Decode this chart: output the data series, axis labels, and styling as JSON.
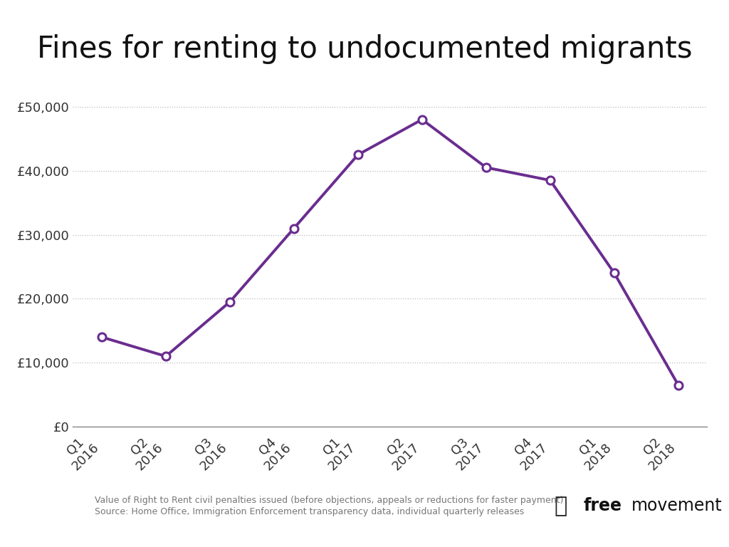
{
  "title": "Fines for renting to undocumented migrants",
  "x_labels": [
    "Q1\n2016",
    "Q2\n2016",
    "Q3\n2016",
    "Q4\n2016",
    "Q1\n2017",
    "Q2\n2017",
    "Q3\n2017",
    "Q4\n2017",
    "Q1\n2018",
    "Q2\n2018"
  ],
  "y_values": [
    14000,
    11000,
    19500,
    31000,
    42500,
    48000,
    40500,
    38500,
    24000,
    6500
  ],
  "line_color": "#6a2d8f",
  "marker_color": "#6a2d8f",
  "marker_face": "#ffffff",
  "ylim": [
    0,
    53000
  ],
  "yticks": [
    0,
    10000,
    20000,
    30000,
    40000,
    50000
  ],
  "ytick_labels": [
    "£0",
    "£10,000",
    "£20,000",
    "£30,000",
    "£40,000",
    "£50,000"
  ],
  "footnote_line1": "Value of Right to Rent civil penalties issued (before objections, appeals or reductions for faster payment)",
  "footnote_line2": "Source: Home Office, Immigration Enforcement transparency data, individual quarterly releases",
  "background_color": "#ffffff",
  "grid_color": "#bbbbbb",
  "title_fontsize": 30,
  "tick_fontsize": 13,
  "footnote_fontsize": 9,
  "line_width": 2.8,
  "marker_size": 8
}
